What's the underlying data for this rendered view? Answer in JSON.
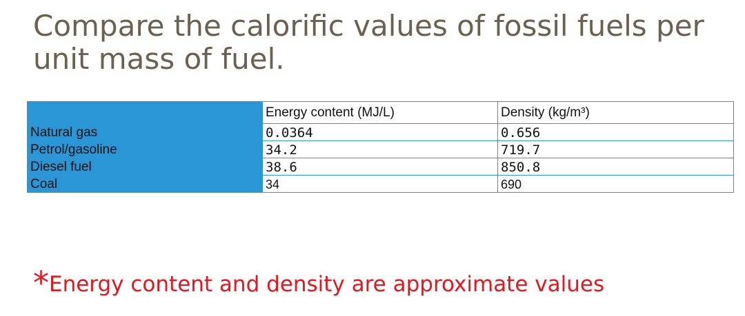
{
  "title": "Compare the calorific values of fossil fuels per unit mass of fuel.",
  "table": {
    "headers": [
      "",
      "Energy content (MJ/L)",
      "Density (kg/m³)"
    ],
    "rows": [
      {
        "fuel": "Natural gas",
        "energy": "0.0364",
        "density": "0.656"
      },
      {
        "fuel": "Petrol/gasoline",
        "energy": "34.2",
        "density": "719.7"
      },
      {
        "fuel": "Diesel fuel",
        "energy": "38.6",
        "density": "850.8"
      },
      {
        "fuel": "Coal",
        "energy": "34",
        "density": "690"
      }
    ]
  },
  "note": {
    "marker": "*",
    "text": "Energy content and density are approximate values"
  },
  "colors": {
    "title": "#6b6150",
    "label_column_bg": "#2a96d6",
    "border": "#2f9bd1",
    "note": "#e6161c"
  }
}
